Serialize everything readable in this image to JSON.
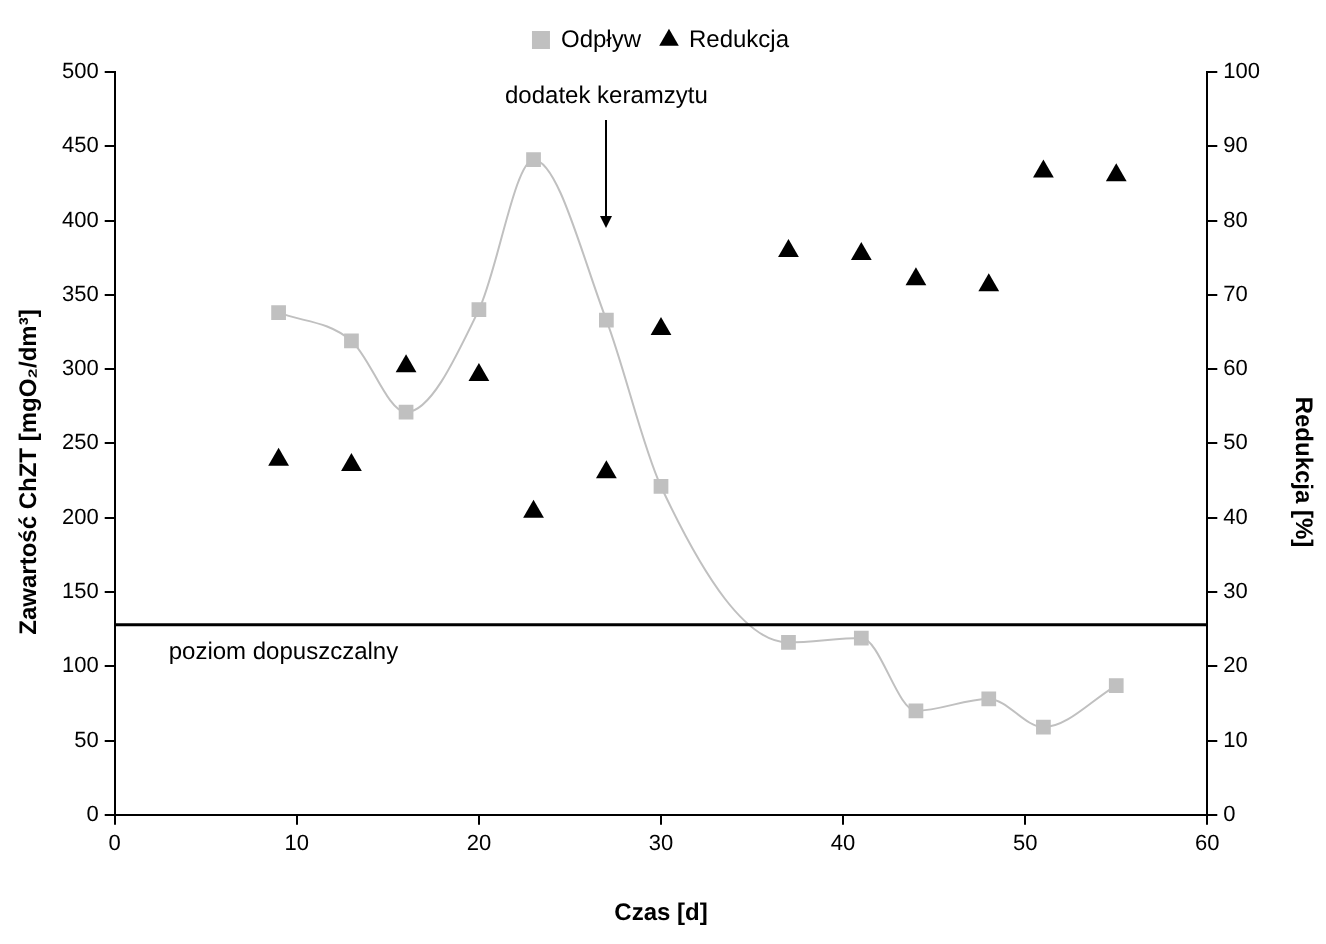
{
  "chart_data": {
    "type": "line",
    "xlabel": "Czas [d]",
    "ylabel": "Zawartość ChZT [mgO₂/dm³]",
    "y2label": "Redukcja [%]",
    "x": [
      9,
      13,
      16,
      20,
      23,
      27,
      30,
      37,
      41,
      44,
      48,
      51,
      55
    ],
    "series": [
      {
        "name": "Odpływ",
        "type": "line",
        "color": "#c0c0c0",
        "marker": "square",
        "values": [
          338,
          319,
          271,
          340,
          441,
          333,
          221,
          116,
          119,
          70,
          78,
          59,
          87
        ]
      },
      {
        "name": "Redukcja",
        "type": "scatter",
        "color": "#000000",
        "marker": "triangle",
        "axis": "y2",
        "values": [
          47.8,
          47.1,
          60.4,
          59.2,
          40.8,
          46.1,
          65.4,
          75.9,
          75.5,
          72.1,
          71.3,
          86.6,
          86.1
        ]
      }
    ],
    "xlim": [
      0,
      60
    ],
    "xticks": [
      0,
      10,
      20,
      30,
      40,
      50,
      60
    ],
    "ylim": [
      0,
      500
    ],
    "yticks": [
      0,
      50,
      100,
      150,
      200,
      250,
      300,
      350,
      400,
      450,
      500
    ],
    "y2lim": [
      0,
      100
    ],
    "y2ticks": [
      0,
      10,
      20,
      30,
      40,
      50,
      60,
      70,
      80,
      90,
      100
    ],
    "ref_lines": [
      {
        "axis": "y",
        "value": 128,
        "label": "poziom dopuszczalny",
        "color": "#000000"
      }
    ],
    "annotations": [
      "dodatek keramzytu"
    ],
    "legend": "top",
    "grid": false
  }
}
